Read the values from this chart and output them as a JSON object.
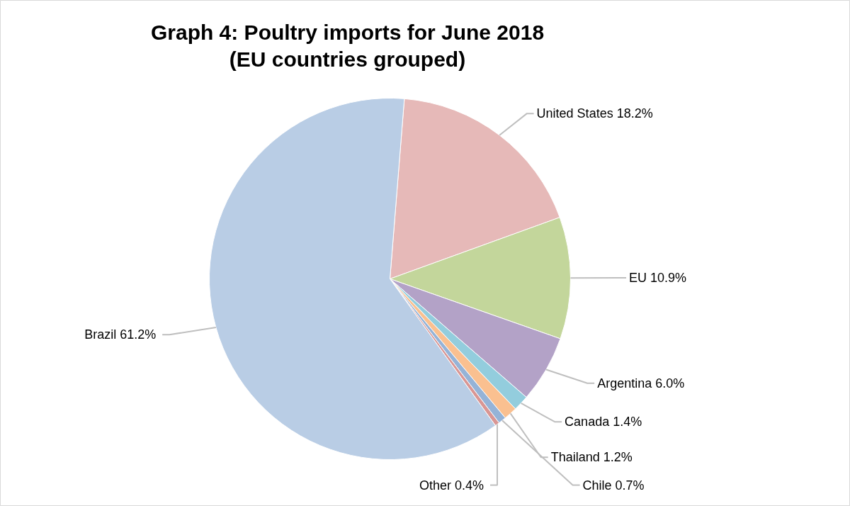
{
  "chart_data": {
    "type": "pie",
    "title": "Graph 4: Poultry imports for June 2018\n(EU countries grouped)",
    "categories": [
      "United States",
      "EU",
      "Argentina",
      "Canada",
      "Thailand",
      "Chile",
      "Other",
      "Brazil"
    ],
    "values": [
      18.2,
      10.9,
      6.0,
      1.4,
      1.2,
      0.7,
      0.4,
      61.2
    ],
    "value_labels": [
      "18.2%",
      "10.9%",
      "6.0%",
      "1.4%",
      "1.2%",
      "0.7%",
      "0.4%",
      "61.2%"
    ],
    "colors": [
      "#e6b9b8",
      "#c3d69b",
      "#b3a2c7",
      "#93cddd",
      "#fac090",
      "#95b3d7",
      "#d99694",
      "#b9cde5"
    ]
  }
}
